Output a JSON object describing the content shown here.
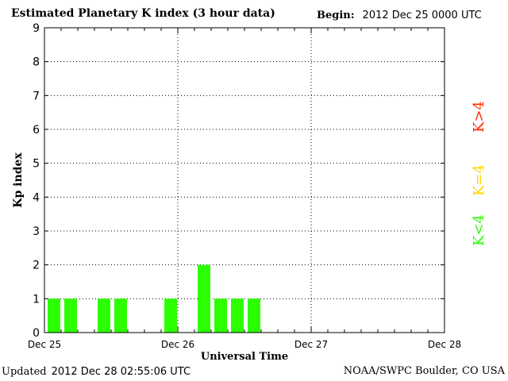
{
  "header": {
    "title": "Estimated Planetary K index (3 hour data)",
    "begin_label": "Begin:",
    "begin_value": "2012 Dec 25 0000 UTC"
  },
  "footer": {
    "updated_label": "Updated",
    "updated_value": "2012 Dec 28 02:55:06 UTC",
    "credit": "NOAA/SWPC Boulder, CO USA"
  },
  "legend": [
    {
      "label": "K>4",
      "color": "#ff2a00"
    },
    {
      "label": "K=4",
      "color": "#ffd700"
    },
    {
      "label": "K<4",
      "color": "#2cff00"
    }
  ],
  "chart_data": {
    "type": "bar",
    "title": "Estimated Planetary K index (3 hour data)",
    "xlabel": "Universal Time",
    "ylabel": "Kp index",
    "ylim": [
      0,
      9
    ],
    "yticks": [
      0,
      1,
      2,
      3,
      4,
      5,
      6,
      7,
      8,
      9
    ],
    "x_tick_labels": [
      "Dec 25",
      "Dec 26",
      "Dec 27",
      "Dec 28"
    ],
    "x_unit": "3-hour interval from 2012 Dec 25 0000 UTC",
    "interval_hours": 3,
    "grid": true,
    "bar_color": "#2cff00",
    "series": [
      {
        "values": [
          {
            "x": 0,
            "y": 1
          },
          {
            "x": 1,
            "y": 1
          },
          {
            "x": 3,
            "y": 1
          },
          {
            "x": 4,
            "y": 1
          },
          {
            "x": 7,
            "y": 1
          },
          {
            "x": 9,
            "y": 2
          },
          {
            "x": 10,
            "y": 1
          },
          {
            "x": 11,
            "y": 1
          },
          {
            "x": 12,
            "y": 1
          }
        ]
      }
    ]
  }
}
